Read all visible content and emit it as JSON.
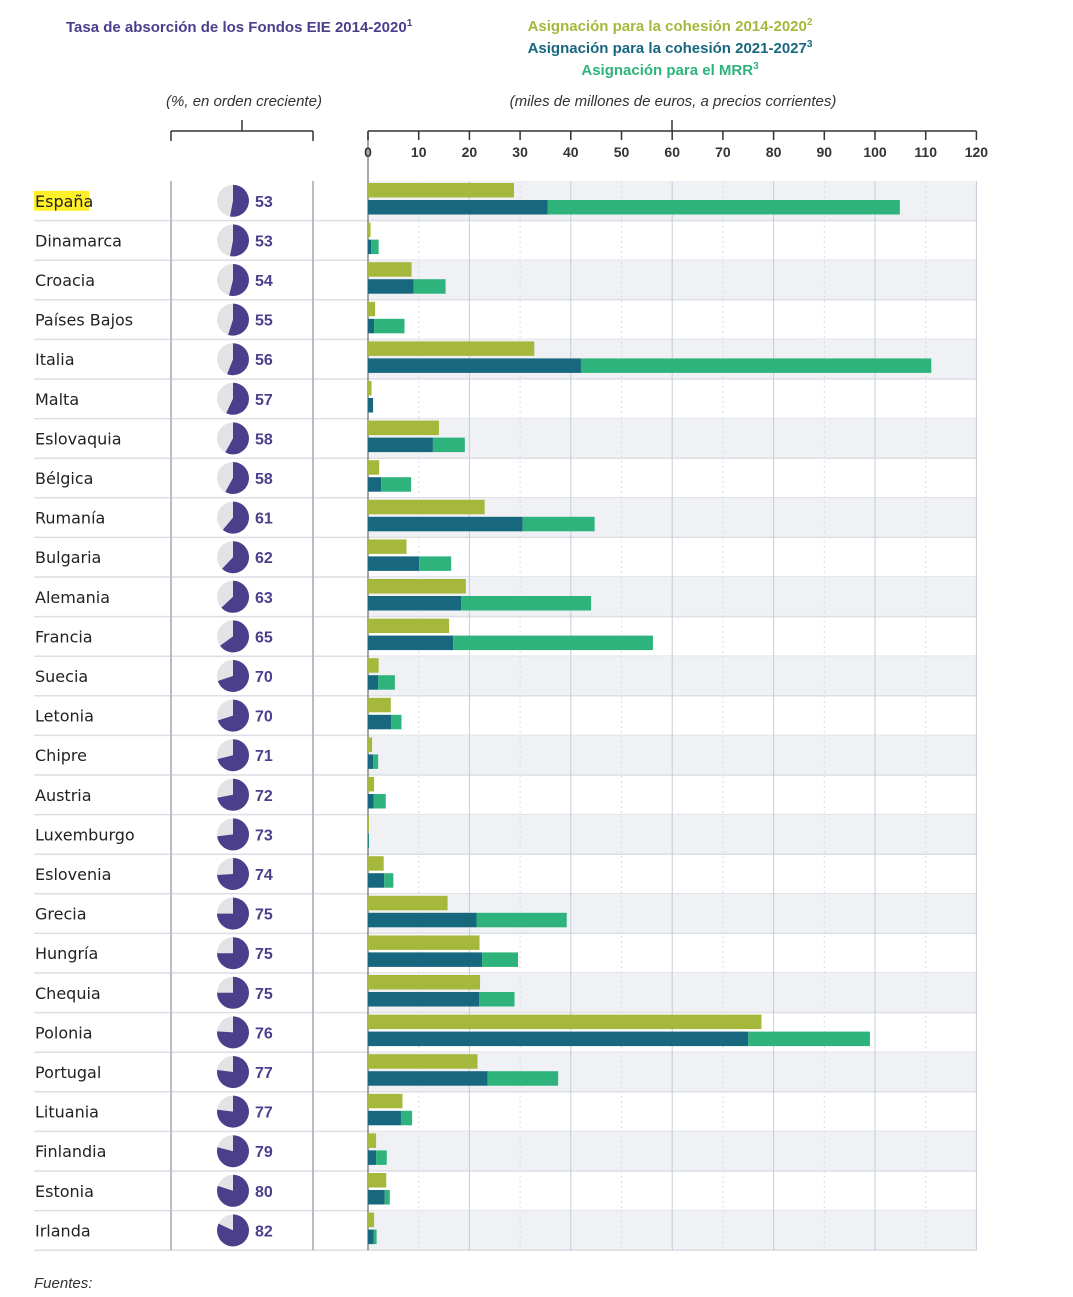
{
  "chart_data": {
    "type": "bar",
    "left_panel": {
      "title": "Tasa de absorción de los Fondos EIE 2014-2020",
      "title_sup": "1",
      "subtitle": "(%, en orden creciente)"
    },
    "right_panel": {
      "subtitle": "(miles de millones de euros, a precios corrientes)",
      "xlim": [
        0,
        120
      ],
      "ticks": [
        0,
        10,
        20,
        30,
        40,
        50,
        60,
        70,
        80,
        90,
        100,
        110,
        120
      ]
    },
    "legend": [
      {
        "label": "Asignación para la cohesión 2014-2020",
        "sup": "2",
        "color": "#a6b83c"
      },
      {
        "label": "Asignación para la cohesión 2021-2027",
        "sup": "3",
        "color": "#17677e"
      },
      {
        "label": "Asignación para el MRR",
        "sup": "3",
        "color": "#2db37b"
      }
    ],
    "highlight": "España",
    "categories": [
      "España",
      "Dinamarca",
      "Croacia",
      "Países Bajos",
      "Italia",
      "Malta",
      "Eslovaquia",
      "Bélgica",
      "Rumanía",
      "Bulgaria",
      "Alemania",
      "Francia",
      "Suecia",
      "Letonia",
      "Chipre",
      "Austria",
      "Luxemburgo",
      "Eslovenia",
      "Grecia",
      "Hungría",
      "Chequia",
      "Polonia",
      "Portugal",
      "Lituania",
      "Finlandia",
      "Estonia",
      "Irlanda"
    ],
    "absorption_rate": [
      53,
      53,
      54,
      55,
      56,
      57,
      58,
      58,
      61,
      62,
      63,
      65,
      70,
      70,
      71,
      72,
      73,
      74,
      75,
      75,
      75,
      76,
      77,
      77,
      79,
      80,
      82
    ],
    "series": [
      {
        "name": "Asignación para la cohesión 2014-2020",
        "values": [
          28.8,
          0.5,
          8.6,
          1.4,
          32.8,
          0.7,
          14.0,
          2.2,
          23.0,
          7.6,
          19.3,
          16.0,
          2.1,
          4.5,
          0.8,
          1.2,
          0.1,
          3.1,
          15.7,
          22.0,
          22.1,
          77.6,
          21.6,
          6.8,
          1.6,
          3.6,
          1.2
        ]
      },
      {
        "name": "Asignación para la cohesión 2021-2027",
        "values": [
          35.4,
          0.6,
          9.0,
          1.2,
          42.0,
          1.0,
          12.8,
          2.6,
          30.5,
          10.1,
          18.4,
          16.8,
          2.0,
          4.6,
          1.0,
          1.1,
          0.1,
          3.2,
          21.4,
          22.5,
          21.9,
          75.0,
          23.6,
          6.5,
          1.6,
          3.3,
          1.1
        ]
      },
      {
        "name": "Asignación para el MRR",
        "values": [
          69.5,
          1.5,
          6.3,
          6.0,
          69.1,
          0.0,
          6.3,
          5.9,
          14.2,
          6.3,
          25.6,
          39.4,
          3.3,
          2.0,
          1.0,
          2.4,
          0.1,
          1.8,
          17.8,
          7.1,
          7.0,
          24.0,
          13.9,
          2.2,
          2.1,
          1.0,
          0.6
        ]
      }
    ],
    "footer": "Fuentes:"
  }
}
